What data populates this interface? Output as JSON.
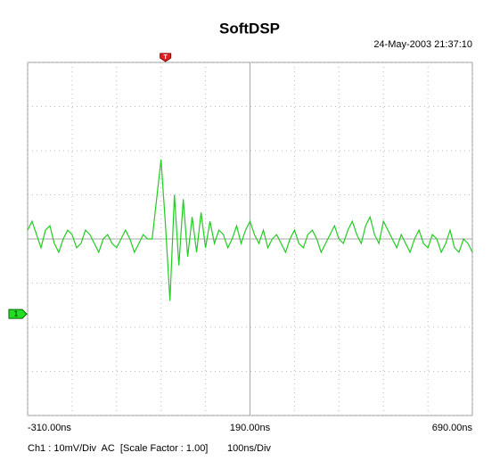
{
  "chart_data": {
    "type": "line",
    "title": "SoftDSP",
    "timestamp": "24-May-2003 21:37:10",
    "channel_info": "Ch1 : 10mV/Div  AC  [Scale Factor : 1.00]",
    "timebase": "100ns/Div",
    "trigger_label": "T",
    "trigger_x": 0,
    "channel_label": "1",
    "channel_level": 0,
    "xlim": [
      -310,
      690
    ],
    "ylim": [
      -23,
      57
    ],
    "xticks": [
      {
        "value": -310,
        "label": "-310.00ns"
      },
      {
        "value": 190,
        "label": "190.00ns"
      },
      {
        "value": 690,
        "label": "690.00ns"
      }
    ],
    "xgrid": [
      -310,
      -210,
      -110,
      -10,
      90,
      190,
      290,
      390,
      490,
      590,
      690
    ],
    "ygrid": [
      -23,
      -13,
      -3,
      7,
      17,
      27,
      37,
      47,
      57
    ],
    "series": [
      {
        "name": "Ch1",
        "color": "#22cc22",
        "x": [
          -310,
          -300,
          -290,
          -280,
          -270,
          -260,
          -250,
          -240,
          -230,
          -220,
          -210,
          -200,
          -190,
          -180,
          -170,
          -160,
          -150,
          -140,
          -130,
          -120,
          -110,
          -100,
          -90,
          -80,
          -70,
          -60,
          -50,
          -40,
          -30,
          -20,
          -10,
          0,
          10,
          20,
          30,
          40,
          50,
          60,
          70,
          80,
          90,
          100,
          110,
          120,
          130,
          140,
          150,
          160,
          170,
          180,
          190,
          200,
          210,
          220,
          230,
          240,
          250,
          260,
          270,
          280,
          290,
          300,
          310,
          320,
          330,
          340,
          350,
          360,
          370,
          380,
          390,
          400,
          410,
          420,
          430,
          440,
          450,
          460,
          470,
          480,
          490,
          500,
          510,
          520,
          530,
          540,
          550,
          560,
          570,
          580,
          590,
          600,
          610,
          620,
          630,
          640,
          650,
          660,
          670,
          680,
          690
        ],
        "values": [
          19,
          21,
          18,
          15,
          19,
          20,
          16,
          14,
          17,
          19,
          18,
          15,
          16,
          19,
          18,
          16,
          14,
          17,
          18,
          16,
          15,
          17,
          19,
          17,
          14,
          16,
          18,
          17,
          17,
          26,
          35,
          20,
          3,
          27,
          11,
          26,
          13,
          22,
          14,
          23,
          15,
          21,
          16,
          19,
          18,
          15,
          17,
          20,
          16,
          19,
          21,
          18,
          16,
          19,
          15,
          17,
          18,
          16,
          14,
          17,
          19,
          16,
          15,
          18,
          19,
          17,
          14,
          16,
          18,
          20,
          17,
          16,
          19,
          21,
          18,
          16,
          20,
          22,
          18,
          16,
          21,
          19,
          17,
          15,
          18,
          16,
          14,
          17,
          19,
          16,
          15,
          18,
          17,
          14,
          16,
          19,
          15,
          14,
          17,
          16,
          14
        ]
      }
    ]
  }
}
